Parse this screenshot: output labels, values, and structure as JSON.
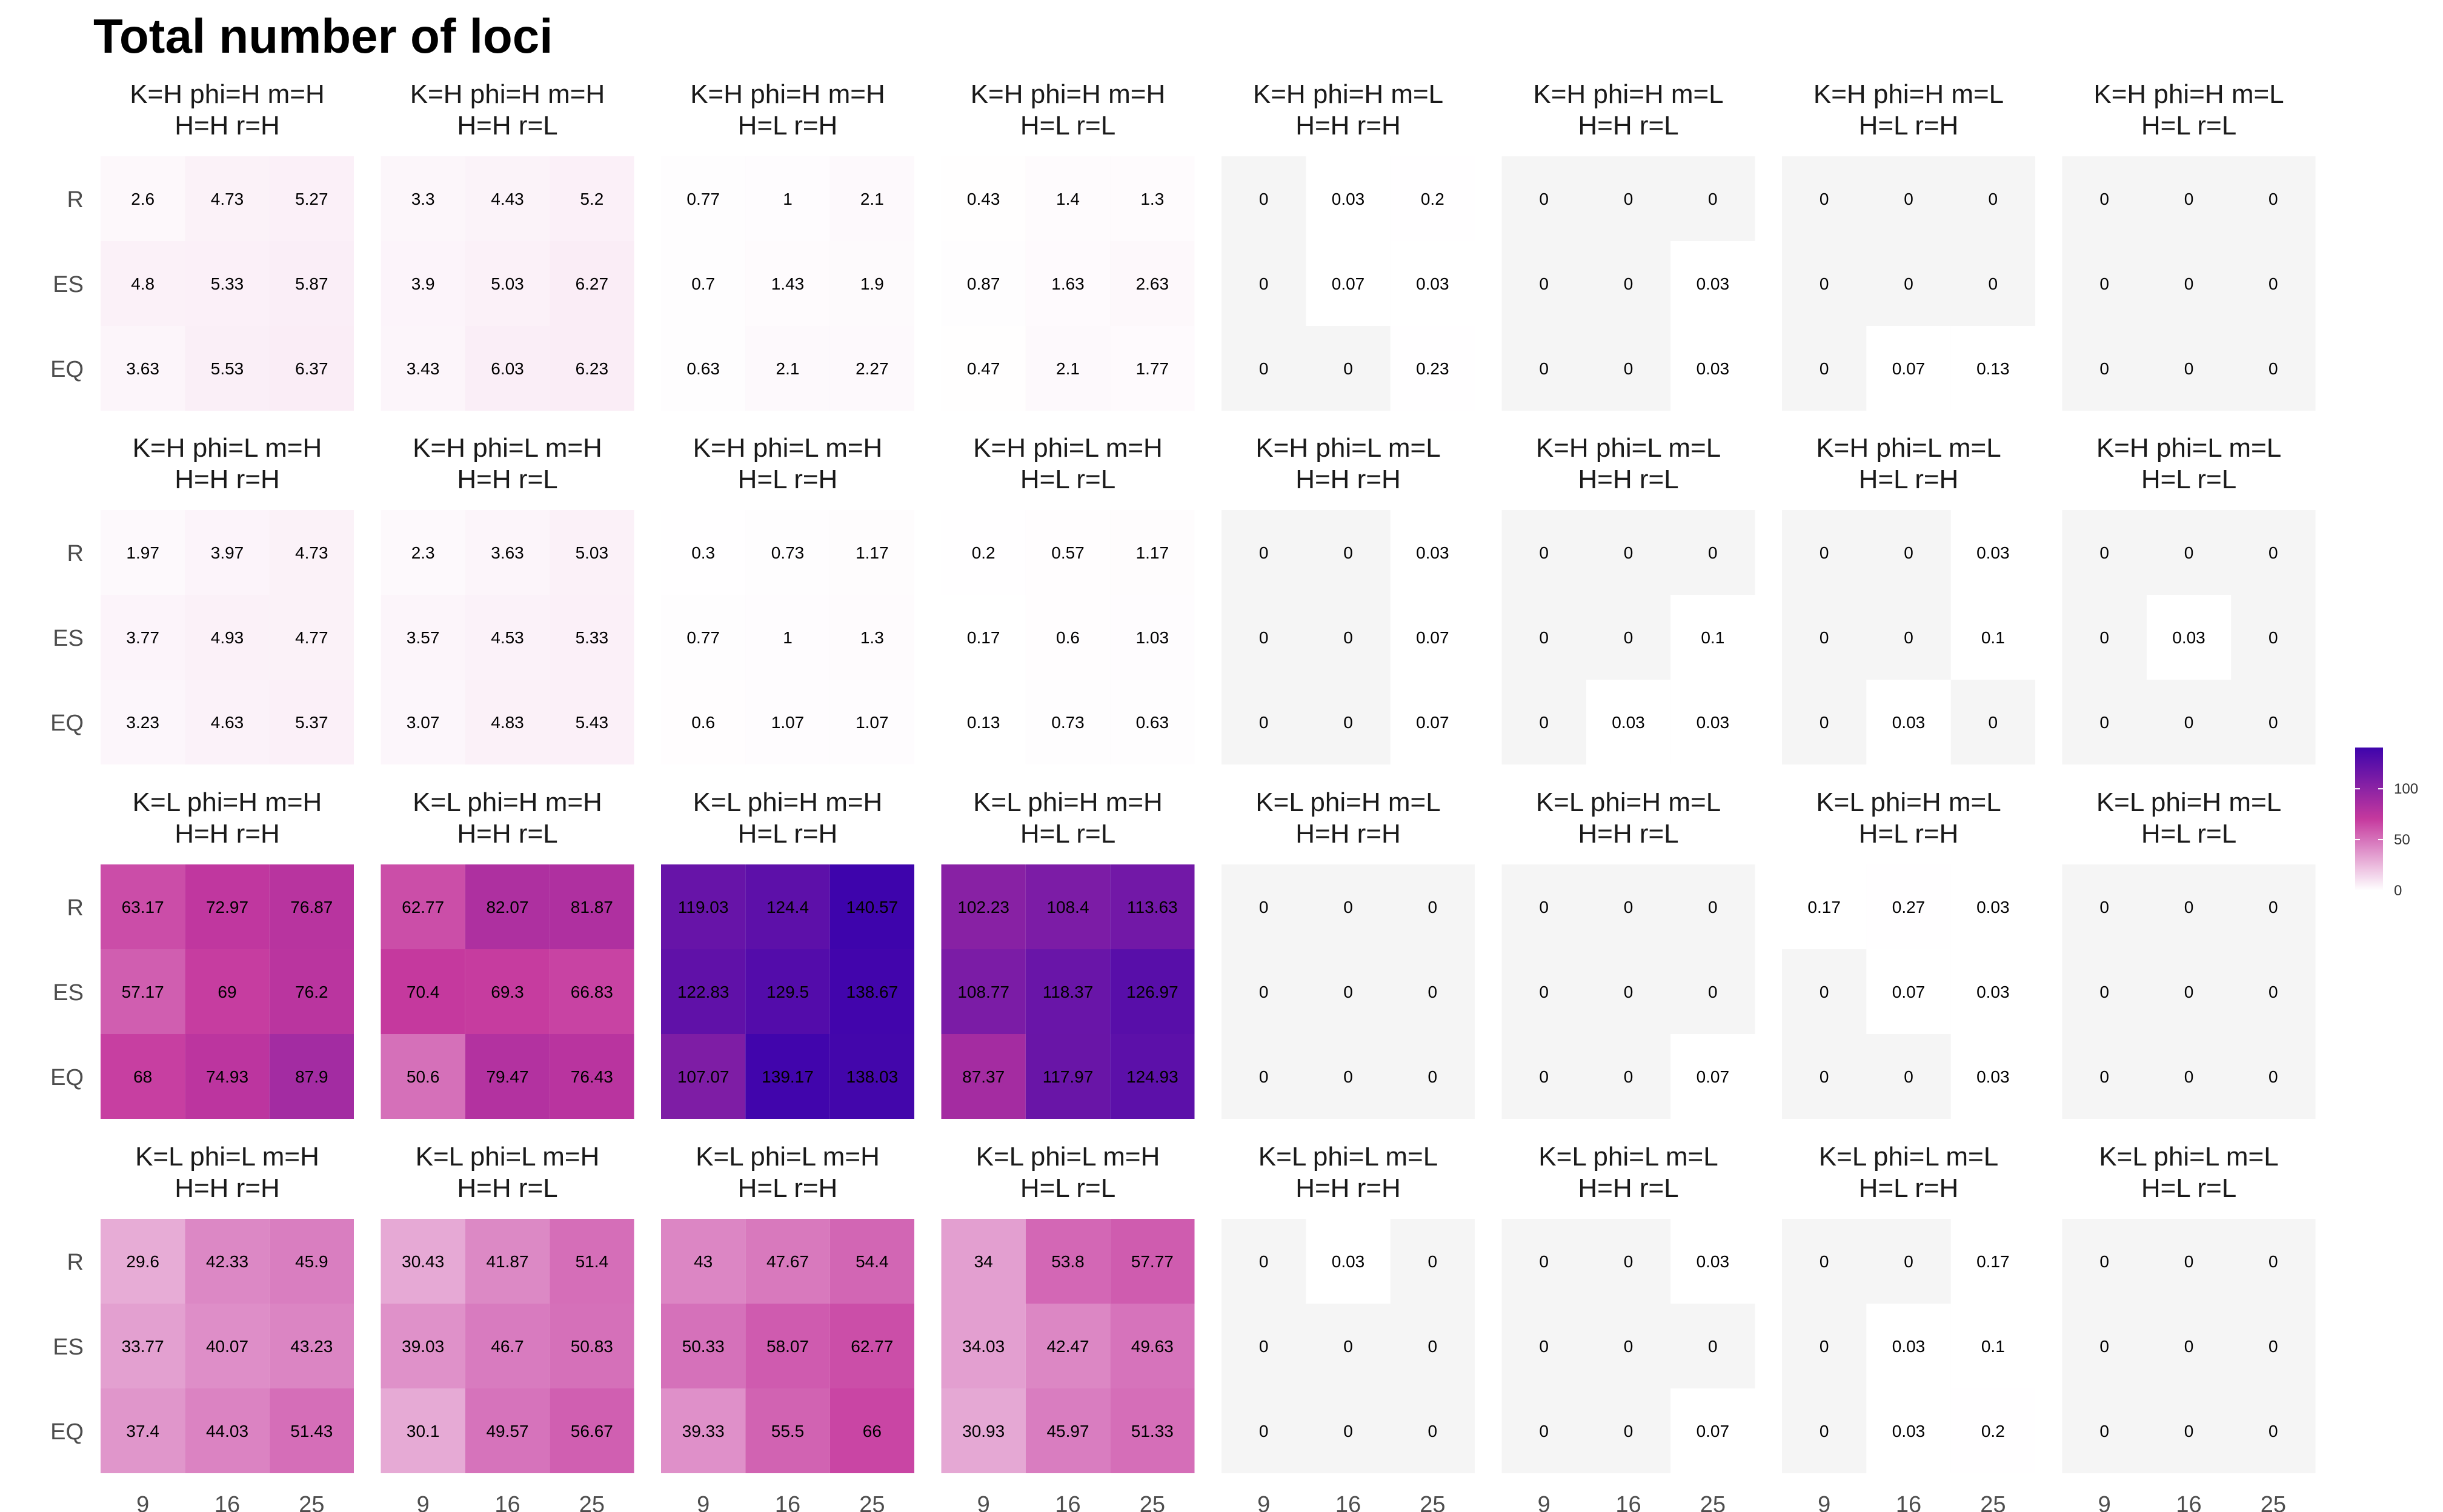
{
  "chart_data": {
    "type": "heatmap",
    "title": "Total number of loci",
    "x_ticks": [
      "9",
      "16",
      "25"
    ],
    "y_ticks": [
      "R",
      "ES",
      "EQ"
    ],
    "legend": {
      "position": "right",
      "ticks": [
        "100",
        "50",
        "0"
      ],
      "tick_values": [
        100,
        50,
        0
      ],
      "range": [
        0,
        140.57
      ],
      "colors": [
        "#ffffff",
        "#c5399e",
        "#3e04ac"
      ]
    },
    "panels": [
      {
        "line1": "K=H phi=H m=H",
        "line2": "H=H r=H",
        "values": [
          [
            "2.6",
            "4.73",
            "5.27"
          ],
          [
            "4.8",
            "5.33",
            "5.87"
          ],
          [
            "3.63",
            "5.53",
            "6.37"
          ]
        ]
      },
      {
        "line1": "K=H phi=H m=H",
        "line2": "H=H r=L",
        "values": [
          [
            "3.3",
            "4.43",
            "5.2"
          ],
          [
            "3.9",
            "5.03",
            "6.27"
          ],
          [
            "3.43",
            "6.03",
            "6.23"
          ]
        ]
      },
      {
        "line1": "K=H phi=H m=H",
        "line2": "H=L r=H",
        "values": [
          [
            "0.77",
            "1",
            "2.1"
          ],
          [
            "0.7",
            "1.43",
            "1.9"
          ],
          [
            "0.63",
            "2.1",
            "2.27"
          ]
        ]
      },
      {
        "line1": "K=H phi=H m=H",
        "line2": "H=L r=L",
        "values": [
          [
            "0.43",
            "1.4",
            "1.3"
          ],
          [
            "0.87",
            "1.63",
            "2.63"
          ],
          [
            "0.47",
            "2.1",
            "1.77"
          ]
        ]
      },
      {
        "line1": "K=H phi=H m=L",
        "line2": "H=H r=H",
        "values": [
          [
            "0",
            "0.03",
            "0.2"
          ],
          [
            "0",
            "0.07",
            "0.03"
          ],
          [
            "0",
            "0",
            "0.23"
          ]
        ]
      },
      {
        "line1": "K=H phi=H m=L",
        "line2": "H=H r=L",
        "values": [
          [
            "0",
            "0",
            "0"
          ],
          [
            "0",
            "0",
            "0.03"
          ],
          [
            "0",
            "0",
            "0.03"
          ]
        ]
      },
      {
        "line1": "K=H phi=H m=L",
        "line2": "H=L r=H",
        "values": [
          [
            "0",
            "0",
            "0"
          ],
          [
            "0",
            "0",
            "0"
          ],
          [
            "0",
            "0.07",
            "0.13"
          ]
        ]
      },
      {
        "line1": "K=H phi=H m=L",
        "line2": "H=L r=L",
        "values": [
          [
            "0",
            "0",
            "0"
          ],
          [
            "0",
            "0",
            "0"
          ],
          [
            "0",
            "0",
            "0"
          ]
        ]
      },
      {
        "line1": "K=H phi=L m=H",
        "line2": "H=H r=H",
        "values": [
          [
            "1.97",
            "3.97",
            "4.73"
          ],
          [
            "3.77",
            "4.93",
            "4.77"
          ],
          [
            "3.23",
            "4.63",
            "5.37"
          ]
        ]
      },
      {
        "line1": "K=H phi=L m=H",
        "line2": "H=H r=L",
        "values": [
          [
            "2.3",
            "3.63",
            "5.03"
          ],
          [
            "3.57",
            "4.53",
            "5.33"
          ],
          [
            "3.07",
            "4.83",
            "5.43"
          ]
        ]
      },
      {
        "line1": "K=H phi=L m=H",
        "line2": "H=L r=H",
        "values": [
          [
            "0.3",
            "0.73",
            "1.17"
          ],
          [
            "0.77",
            "1",
            "1.3"
          ],
          [
            "0.6",
            "1.07",
            "1.07"
          ]
        ]
      },
      {
        "line1": "K=H phi=L m=H",
        "line2": "H=L r=L",
        "values": [
          [
            "0.2",
            "0.57",
            "1.17"
          ],
          [
            "0.17",
            "0.6",
            "1.03"
          ],
          [
            "0.13",
            "0.73",
            "0.63"
          ]
        ]
      },
      {
        "line1": "K=H phi=L m=L",
        "line2": "H=H r=H",
        "values": [
          [
            "0",
            "0",
            "0.03"
          ],
          [
            "0",
            "0",
            "0.07"
          ],
          [
            "0",
            "0",
            "0.07"
          ]
        ]
      },
      {
        "line1": "K=H phi=L m=L",
        "line2": "H=H r=L",
        "values": [
          [
            "0",
            "0",
            "0"
          ],
          [
            "0",
            "0",
            "0.1"
          ],
          [
            "0",
            "0.03",
            "0.03"
          ]
        ]
      },
      {
        "line1": "K=H phi=L m=L",
        "line2": "H=L r=H",
        "values": [
          [
            "0",
            "0",
            "0.03"
          ],
          [
            "0",
            "0",
            "0.1"
          ],
          [
            "0",
            "0.03",
            "0"
          ]
        ]
      },
      {
        "line1": "K=H phi=L m=L",
        "line2": "H=L r=L",
        "values": [
          [
            "0",
            "0",
            "0"
          ],
          [
            "0",
            "0.03",
            "0"
          ],
          [
            "0",
            "0",
            "0"
          ]
        ]
      },
      {
        "line1": "K=L phi=H m=H",
        "line2": "H=H r=H",
        "values": [
          [
            "63.17",
            "72.97",
            "76.87"
          ],
          [
            "57.17",
            "69",
            "76.2"
          ],
          [
            "68",
            "74.93",
            "87.9"
          ]
        ]
      },
      {
        "line1": "K=L phi=H m=H",
        "line2": "H=H r=L",
        "values": [
          [
            "62.77",
            "82.07",
            "81.87"
          ],
          [
            "70.4",
            "69.3",
            "66.83"
          ],
          [
            "50.6",
            "79.47",
            "76.43"
          ]
        ]
      },
      {
        "line1": "K=L phi=H m=H",
        "line2": "H=L r=H",
        "values": [
          [
            "119.03",
            "124.4",
            "140.57"
          ],
          [
            "122.83",
            "129.5",
            "138.67"
          ],
          [
            "107.07",
            "139.17",
            "138.03"
          ]
        ]
      },
      {
        "line1": "K=L phi=H m=H",
        "line2": "H=L r=L",
        "values": [
          [
            "102.23",
            "108.4",
            "113.63"
          ],
          [
            "108.77",
            "118.37",
            "126.97"
          ],
          [
            "87.37",
            "117.97",
            "124.93"
          ]
        ]
      },
      {
        "line1": "K=L phi=H m=L",
        "line2": "H=H r=H",
        "values": [
          [
            "0",
            "0",
            "0"
          ],
          [
            "0",
            "0",
            "0"
          ],
          [
            "0",
            "0",
            "0"
          ]
        ]
      },
      {
        "line1": "K=L phi=H m=L",
        "line2": "H=H r=L",
        "values": [
          [
            "0",
            "0",
            "0"
          ],
          [
            "0",
            "0",
            "0"
          ],
          [
            "0",
            "0",
            "0.07"
          ]
        ]
      },
      {
        "line1": "K=L phi=H m=L",
        "line2": "H=L r=H",
        "values": [
          [
            "0.17",
            "0.27",
            "0.03"
          ],
          [
            "0",
            "0.07",
            "0.03"
          ],
          [
            "0",
            "0",
            "0.03"
          ]
        ]
      },
      {
        "line1": "K=L phi=H m=L",
        "line2": "H=L r=L",
        "values": [
          [
            "0",
            "0",
            "0"
          ],
          [
            "0",
            "0",
            "0"
          ],
          [
            "0",
            "0",
            "0"
          ]
        ]
      },
      {
        "line1": "K=L phi=L m=H",
        "line2": "H=H r=H",
        "values": [
          [
            "29.6",
            "42.33",
            "45.9"
          ],
          [
            "33.77",
            "40.07",
            "43.23"
          ],
          [
            "37.4",
            "44.03",
            "51.43"
          ]
        ]
      },
      {
        "line1": "K=L phi=L m=H",
        "line2": "H=H r=L",
        "values": [
          [
            "30.43",
            "41.87",
            "51.4"
          ],
          [
            "39.03",
            "46.7",
            "50.83"
          ],
          [
            "30.1",
            "49.57",
            "56.67"
          ]
        ]
      },
      {
        "line1": "K=L phi=L m=H",
        "line2": "H=L r=H",
        "values": [
          [
            "43",
            "47.67",
            "54.4"
          ],
          [
            "50.33",
            "58.07",
            "62.77"
          ],
          [
            "39.33",
            "55.5",
            "66"
          ]
        ]
      },
      {
        "line1": "K=L phi=L m=H",
        "line2": "H=L r=L",
        "values": [
          [
            "34",
            "53.8",
            "57.77"
          ],
          [
            "34.03",
            "42.47",
            "49.63"
          ],
          [
            "30.93",
            "45.97",
            "51.33"
          ]
        ]
      },
      {
        "line1": "K=L phi=L m=L",
        "line2": "H=H r=H",
        "values": [
          [
            "0",
            "0.03",
            "0"
          ],
          [
            "0",
            "0",
            "0"
          ],
          [
            "0",
            "0",
            "0"
          ]
        ]
      },
      {
        "line1": "K=L phi=L m=L",
        "line2": "H=H r=L",
        "values": [
          [
            "0",
            "0",
            "0.03"
          ],
          [
            "0",
            "0",
            "0"
          ],
          [
            "0",
            "0",
            "0.07"
          ]
        ]
      },
      {
        "line1": "K=L phi=L m=L",
        "line2": "H=L r=H",
        "values": [
          [
            "0",
            "0",
            "0.17"
          ],
          [
            "0",
            "0.03",
            "0.1"
          ],
          [
            "0",
            "0.03",
            "0.2"
          ]
        ]
      },
      {
        "line1": "K=L phi=L m=L",
        "line2": "H=L r=L",
        "values": [
          [
            "0",
            "0",
            "0"
          ],
          [
            "0",
            "0",
            "0"
          ],
          [
            "0",
            "0",
            "0"
          ]
        ]
      }
    ]
  }
}
